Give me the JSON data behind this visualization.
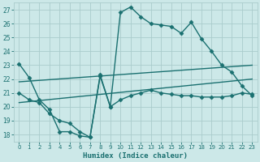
{
  "xlabel": "Humidex (Indice chaleur)",
  "xlim": [
    -0.5,
    23.5
  ],
  "ylim": [
    17.5,
    27.5
  ],
  "yticks": [
    18,
    19,
    20,
    21,
    22,
    23,
    24,
    25,
    26,
    27
  ],
  "xticks": [
    0,
    1,
    2,
    3,
    4,
    5,
    6,
    7,
    8,
    9,
    10,
    11,
    12,
    13,
    14,
    15,
    16,
    17,
    18,
    19,
    20,
    21,
    22,
    23
  ],
  "background_color": "#cce8e8",
  "grid_color": "#aacccc",
  "line_color": "#1a7070",
  "line_width": 1.0,
  "marker": "D",
  "marker_size": 2.5,
  "lines": [
    {
      "x": [
        0,
        1,
        2,
        3,
        4,
        5,
        6,
        7,
        8,
        9,
        10,
        11,
        12,
        13,
        14,
        15,
        16,
        17,
        18,
        19,
        20,
        21,
        22,
        23
      ],
      "y": [
        23.1,
        22.1,
        20.5,
        19.8,
        18.2,
        18.2,
        17.9,
        17.8,
        22.2,
        20.0,
        26.8,
        27.2,
        26.5,
        26.0,
        25.9,
        25.8,
        25.3,
        26.1,
        24.9,
        24.0,
        23.0,
        22.5,
        21.5,
        20.8
      ],
      "has_marker": true
    },
    {
      "x": [
        0,
        1,
        2,
        3,
        4,
        5,
        6,
        7,
        8,
        9,
        10,
        11,
        12,
        13,
        14,
        15,
        16,
        17,
        18,
        19,
        20,
        21,
        22,
        23
      ],
      "y": [
        21.0,
        20.5,
        20.3,
        19.5,
        19.0,
        18.8,
        18.2,
        17.8,
        22.3,
        20.0,
        20.5,
        20.8,
        21.0,
        21.2,
        21.0,
        20.9,
        20.8,
        20.8,
        20.7,
        20.7,
        20.7,
        20.8,
        21.0,
        20.9
      ],
      "has_marker": true
    },
    {
      "x": [
        0,
        23
      ],
      "y": [
        21.8,
        23.0
      ],
      "has_marker": false
    },
    {
      "x": [
        0,
        23
      ],
      "y": [
        20.3,
        22.0
      ],
      "has_marker": false
    }
  ]
}
